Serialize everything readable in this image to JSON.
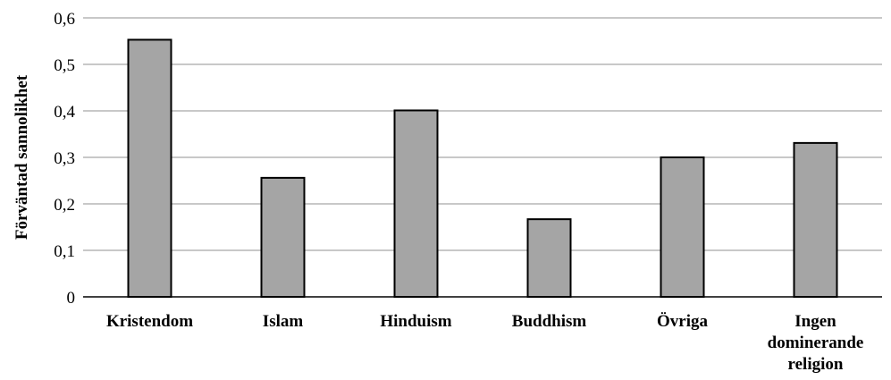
{
  "chart_data": {
    "type": "bar",
    "categories": [
      [
        "Kristendom"
      ],
      [
        "Islam"
      ],
      [
        "Hinduism"
      ],
      [
        "Buddhism"
      ],
      [
        "Övriga"
      ],
      [
        "Ingen",
        "dominerande",
        "religion"
      ]
    ],
    "values": [
      0.553,
      0.256,
      0.401,
      0.167,
      0.3,
      0.331
    ],
    "title": "",
    "xlabel": "",
    "ylabel": "Förväntad sannolikhet",
    "ylim": [
      0,
      0.6
    ],
    "yticks": [
      0,
      0.1,
      0.2,
      0.3,
      0.4,
      0.5,
      0.6
    ],
    "ytick_labels": [
      "0",
      "0,1",
      "0,2",
      "0,3",
      "0,4",
      "0,5",
      "0,6"
    ],
    "grid": true,
    "bar_color": "#a5a5a5",
    "legend": "none"
  }
}
